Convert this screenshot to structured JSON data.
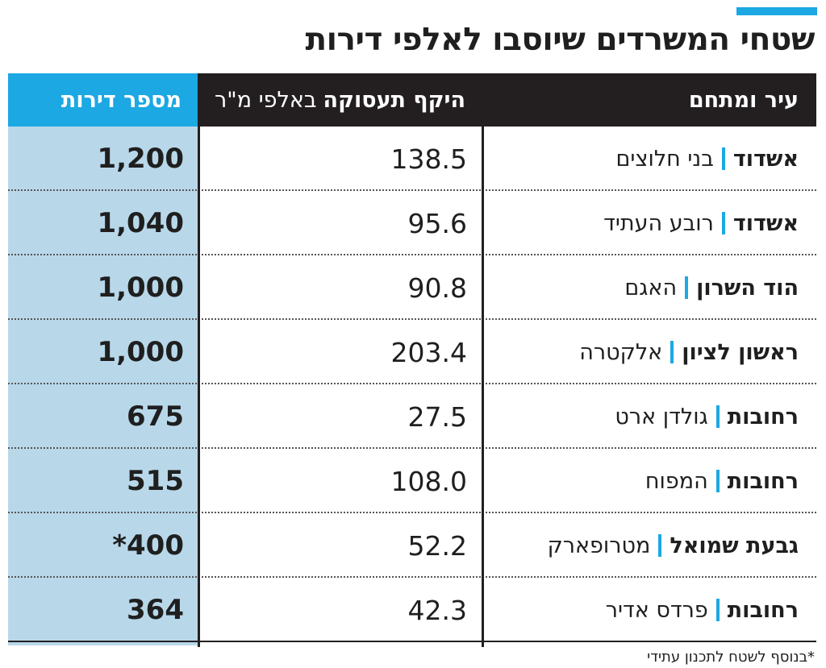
{
  "title": "שטחי המשרדים שיוסבו לאלפי דירות",
  "header": {
    "city": "עיר ומתחם",
    "area_bold": "היקף תעסוקה",
    "area_normal": "באלפי מ\"ר",
    "units": "מספר דירות"
  },
  "footnote": "*בנוסף לשטח לתכנון עתידי",
  "colors": {
    "accent": "#1ca8e3",
    "header_dark": "#231f20",
    "units_column": "#b8d8ea"
  },
  "chart_data": {
    "type": "table",
    "title": "שטחי המשרדים שיוסבו לאלפי דירות",
    "columns": [
      "עיר ומתחם",
      "היקף תעסוקה באלפי מ\"ר",
      "מספר דירות"
    ],
    "rows": [
      {
        "city": "אשדוד",
        "site": "בני חלוצים",
        "area": "138.5",
        "units": "1,200"
      },
      {
        "city": "אשדוד",
        "site": "רובע העתיד",
        "area": "95.6",
        "units": "1,040"
      },
      {
        "city": "הוד השרון",
        "site": "האגם",
        "area": "90.8",
        "units": "1,000"
      },
      {
        "city": "ראשון לציון",
        "site": "אלקטרה",
        "area": "203.4",
        "units": "1,000"
      },
      {
        "city": "רחובות",
        "site": "גולדן ארט",
        "area": "27.5",
        "units": "675"
      },
      {
        "city": "רחובות",
        "site": "המפוח",
        "area": "108.0",
        "units": "515"
      },
      {
        "city": "גבעת שמואל",
        "site": "מטרופארק",
        "area": "52.2",
        "units": "*400"
      },
      {
        "city": "רחובות",
        "site": "פרדס אדיר",
        "area": "42.3",
        "units": "364"
      }
    ]
  }
}
